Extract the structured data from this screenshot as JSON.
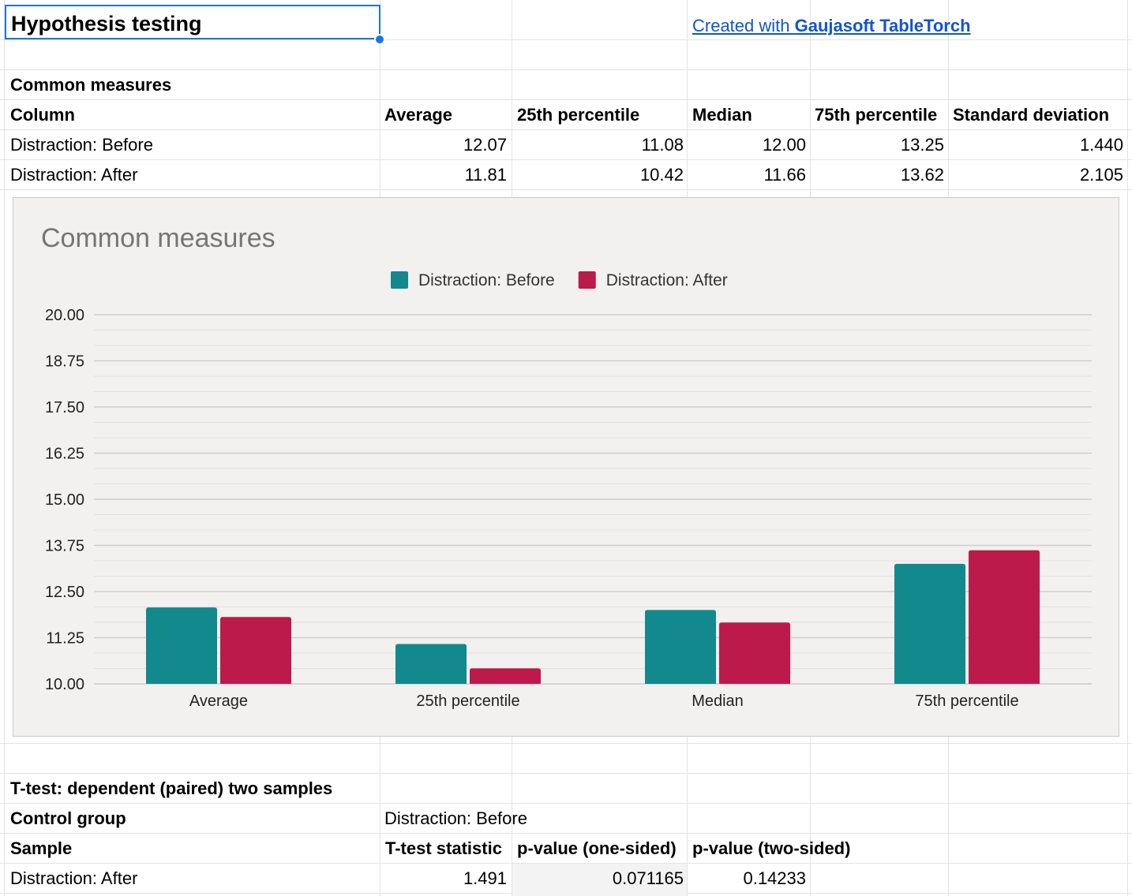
{
  "sheet": {
    "title": "Hypothesis testing",
    "credit": {
      "prefix": "Created with ",
      "brand": "Gaujasoft TableTorch"
    }
  },
  "common_measures": {
    "heading": "Common measures",
    "headers": [
      "Column",
      "Average",
      "25th percentile",
      "Median",
      "75th percentile",
      "Standard deviation"
    ],
    "rows": [
      [
        "Distraction: Before",
        "12.07",
        "11.08",
        "12.00",
        "13.25",
        "1.440"
      ],
      [
        "Distraction: After",
        "11.81",
        "10.42",
        "11.66",
        "13.62",
        "2.105"
      ]
    ]
  },
  "ttest": {
    "heading": "T-test: dependent (paired) two samples",
    "control_label": "Control group",
    "control_value": "Distraction: Before",
    "headers": [
      "Sample",
      "T-test statistic",
      "p-value (one-sided)",
      "p-value (two-sided)"
    ],
    "row": [
      "Distraction: After",
      "1.491",
      "0.071165",
      "0.14233"
    ]
  },
  "chart_data": {
    "type": "bar",
    "title": "Common measures",
    "categories": [
      "Average",
      "25th percentile",
      "Median",
      "75th percentile"
    ],
    "series": [
      {
        "name": "Distraction: Before",
        "color": "#12898c",
        "values": [
          12.07,
          11.08,
          12.0,
          13.25
        ]
      },
      {
        "name": "Distraction: After",
        "color": "#bb1a4a",
        "values": [
          11.81,
          10.42,
          11.66,
          13.62
        ]
      }
    ],
    "ylim": [
      10,
      20
    ],
    "yticks": [
      "20.00",
      "18.75",
      "17.50",
      "16.25",
      "15.00",
      "13.75",
      "12.50",
      "11.25",
      "10.00"
    ],
    "legend": "top",
    "grid": true,
    "xlabel": "",
    "ylabel": ""
  }
}
